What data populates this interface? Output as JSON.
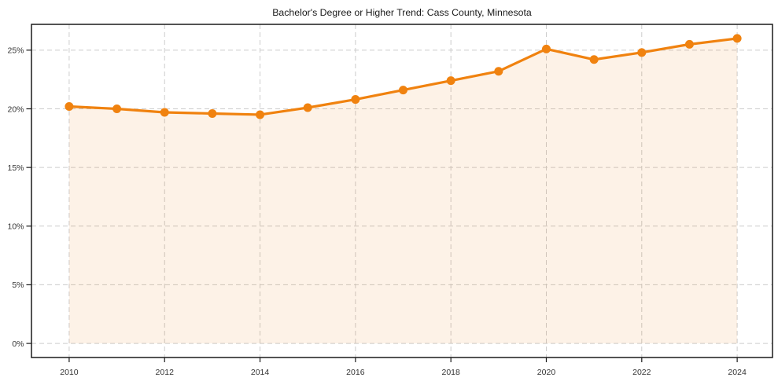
{
  "chart_data": {
    "type": "line",
    "title": "Bachelor's Degree or Higher Trend: Cass County, Minnesota",
    "x": [
      2010,
      2011,
      2012,
      2013,
      2014,
      2015,
      2016,
      2017,
      2018,
      2019,
      2020,
      2021,
      2022,
      2023,
      2024
    ],
    "values": [
      20.2,
      20.0,
      19.7,
      19.6,
      19.5,
      20.1,
      20.8,
      21.6,
      22.4,
      23.2,
      25.1,
      24.2,
      24.8,
      25.5,
      26.0
    ],
    "ylabel_format": "percent",
    "x_ticks": [
      2010,
      2012,
      2014,
      2016,
      2018,
      2020,
      2022,
      2024
    ],
    "y_ticks": [
      {
        "value": 0,
        "label": "0%"
      },
      {
        "value": 5,
        "label": "5%"
      },
      {
        "value": 10,
        "label": "10%"
      },
      {
        "value": 15,
        "label": "15%"
      },
      {
        "value": 20,
        "label": "20%"
      },
      {
        "value": 25,
        "label": "25%"
      }
    ],
    "x_range": [
      2009.21,
      2024.74
    ],
    "y_range": [
      -1.2,
      27.2
    ],
    "grid": true,
    "grid_style": "dashed",
    "legend": "none",
    "area_fill": true,
    "fill_baseline": 0,
    "marker": "circle",
    "colors": {
      "line": "#f0820f",
      "marker": "#f0820f",
      "area": "rgba(240,130,15,0.10)",
      "grid": "#cccccc",
      "axis": "#1a1a1a",
      "text": "#333333",
      "title": "#1a1a1a",
      "background": "#ffffff"
    }
  }
}
